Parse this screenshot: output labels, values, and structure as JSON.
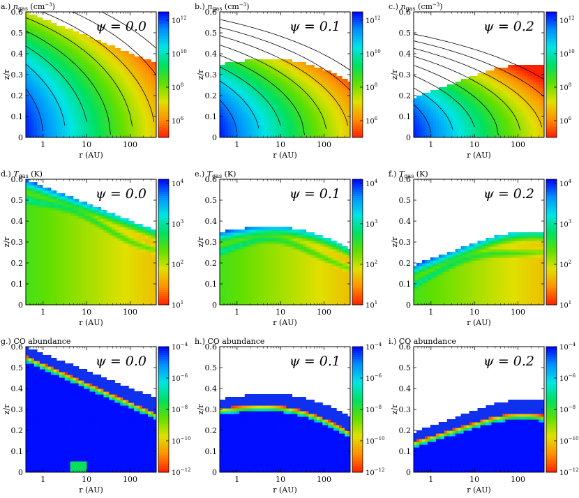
{
  "chart_data": [
    {
      "id": "a",
      "type": "heatmap",
      "title": "a.) n_gas (cm^-3)",
      "title_prefix": "a.)",
      "title_var": "n",
      "title_sub": "gas",
      "title_unit": "(cm",
      "title_exp": "−3",
      "title_close": ")",
      "psi_label": "ψ = 0.0",
      "quantity": "gas density",
      "psi": 0.0,
      "xlabel": "r (AU)",
      "ylabel": "z/r",
      "xscale": "log",
      "xlim": [
        0.4,
        400
      ],
      "ylim": [
        0,
        0.6
      ],
      "xticks": [
        "1",
        "10",
        "100"
      ],
      "yticks": [
        "0",
        "0.1",
        "0.2",
        "0.3",
        "0.4",
        "0.5",
        "0.6"
      ],
      "colorbar": {
        "scale": "log",
        "range_exp": [
          5,
          12.5
        ],
        "ticks": [
          {
            "base": "10",
            "exp": "12"
          },
          {
            "base": "10",
            "exp": "10"
          },
          {
            "base": "10",
            "exp": "8"
          },
          {
            "base": "10",
            "exp": "6"
          }
        ]
      },
      "grid": false
    },
    {
      "id": "b",
      "type": "heatmap",
      "title": "b.) n_gas (cm^-3)",
      "title_prefix": "b.)",
      "title_var": "n",
      "title_sub": "gas",
      "title_unit": "(cm",
      "title_exp": "−3",
      "title_close": ")",
      "psi_label": "ψ = 0.1",
      "quantity": "gas density",
      "psi": 0.1,
      "xlabel": "r (AU)",
      "ylabel": "z/r",
      "xscale": "log",
      "xlim": [
        0.4,
        400
      ],
      "ylim": [
        0,
        0.6
      ],
      "xticks": [
        "1",
        "10",
        "100"
      ],
      "yticks": [
        "0",
        "0.1",
        "0.2",
        "0.3",
        "0.4",
        "0.5",
        "0.6"
      ],
      "colorbar": {
        "scale": "log",
        "range_exp": [
          5,
          12.5
        ],
        "ticks": [
          {
            "base": "10",
            "exp": "12"
          },
          {
            "base": "10",
            "exp": "10"
          },
          {
            "base": "10",
            "exp": "8"
          },
          {
            "base": "10",
            "exp": "6"
          }
        ]
      },
      "grid": false
    },
    {
      "id": "c",
      "type": "heatmap",
      "title": "c.) n_gas (cm^-3)",
      "title_prefix": "c.)",
      "title_var": "n",
      "title_sub": "gas",
      "title_unit": "(cm",
      "title_exp": "−3",
      "title_close": ")",
      "psi_label": "ψ = 0.2",
      "quantity": "gas density",
      "psi": 0.2,
      "xlabel": "r (AU)",
      "ylabel": "z/r",
      "xscale": "log",
      "xlim": [
        0.4,
        400
      ],
      "ylim": [
        0,
        0.6
      ],
      "xticks": [
        "1",
        "10",
        "100"
      ],
      "yticks": [
        "0",
        "0.1",
        "0.2",
        "0.3",
        "0.4",
        "0.5",
        "0.6"
      ],
      "colorbar": {
        "scale": "log",
        "range_exp": [
          5,
          12.5
        ],
        "ticks": [
          {
            "base": "10",
            "exp": "12"
          },
          {
            "base": "10",
            "exp": "10"
          },
          {
            "base": "10",
            "exp": "8"
          },
          {
            "base": "10",
            "exp": "6"
          }
        ]
      },
      "grid": false
    },
    {
      "id": "d",
      "type": "heatmap",
      "title": "d.) T_gas (K)",
      "title_prefix": "d.)",
      "title_var": "T",
      "title_sub": "gas",
      "title_unit": "(K)",
      "title_exp": "",
      "title_close": "",
      "psi_label": "ψ = 0.0",
      "quantity": "gas temperature",
      "psi": 0.0,
      "xlabel": "r (AU)",
      "ylabel": "z/r",
      "xscale": "log",
      "xlim": [
        0.4,
        400
      ],
      "ylim": [
        0,
        0.6
      ],
      "xticks": [
        "1",
        "10",
        "100"
      ],
      "yticks": [
        "0",
        "0.1",
        "0.2",
        "0.3",
        "0.4",
        "0.5",
        "0.6"
      ],
      "colorbar": {
        "scale": "log",
        "range_exp": [
          1,
          4.1
        ],
        "ticks": [
          {
            "base": "10",
            "exp": "4"
          },
          {
            "base": "10",
            "exp": "3"
          },
          {
            "base": "10",
            "exp": "2"
          },
          {
            "base": "10",
            "exp": "1"
          }
        ]
      },
      "grid": false
    },
    {
      "id": "e",
      "type": "heatmap",
      "title": "e.) T_gas (K)",
      "title_prefix": "e.)",
      "title_var": "T",
      "title_sub": "gas",
      "title_unit": "(K)",
      "title_exp": "",
      "title_close": "",
      "psi_label": "ψ = 0.1",
      "quantity": "gas temperature",
      "psi": 0.1,
      "xlabel": "r (AU)",
      "ylabel": "z/r",
      "xscale": "log",
      "xlim": [
        0.4,
        400
      ],
      "ylim": [
        0,
        0.6
      ],
      "xticks": [
        "1",
        "10",
        "100"
      ],
      "yticks": [
        "0",
        "0.1",
        "0.2",
        "0.3",
        "0.4",
        "0.5",
        "0.6"
      ],
      "colorbar": {
        "scale": "log",
        "range_exp": [
          1,
          4.1
        ],
        "ticks": [
          {
            "base": "10",
            "exp": "4"
          },
          {
            "base": "10",
            "exp": "3"
          },
          {
            "base": "10",
            "exp": "2"
          },
          {
            "base": "10",
            "exp": "1"
          }
        ]
      },
      "grid": false
    },
    {
      "id": "f",
      "type": "heatmap",
      "title": "f.) T_gas (K)",
      "title_prefix": "f.)",
      "title_var": "T",
      "title_sub": "gas",
      "title_unit": "(K)",
      "title_exp": "",
      "title_close": "",
      "psi_label": "ψ = 0.2",
      "quantity": "gas temperature",
      "psi": 0.2,
      "xlabel": "r (AU)",
      "ylabel": "z/r",
      "xscale": "log",
      "xlim": [
        0.4,
        400
      ],
      "ylim": [
        0,
        0.6
      ],
      "xticks": [
        "1",
        "10",
        "100"
      ],
      "yticks": [
        "0",
        "0.1",
        "0.2",
        "0.3",
        "0.4",
        "0.5",
        "0.6"
      ],
      "colorbar": {
        "scale": "log",
        "range_exp": [
          1,
          4.1
        ],
        "ticks": [
          {
            "base": "10",
            "exp": "4"
          },
          {
            "base": "10",
            "exp": "3"
          },
          {
            "base": "10",
            "exp": "2"
          },
          {
            "base": "10",
            "exp": "1"
          }
        ]
      },
      "grid": false
    },
    {
      "id": "g",
      "type": "heatmap",
      "title": "g.) CO abundance",
      "title_prefix": "g.)",
      "title_var": "",
      "title_sub": "",
      "title_unit": "CO abundance",
      "title_exp": "",
      "title_close": "",
      "psi_label": "ψ = 0.0",
      "quantity": "CO abundance",
      "psi": 0.0,
      "xlabel": "r (AU)",
      "ylabel": "z/r",
      "xscale": "log",
      "xlim": [
        0.4,
        400
      ],
      "ylim": [
        0,
        0.6
      ],
      "xticks": [
        "1",
        "10",
        "100"
      ],
      "yticks": [
        "0",
        "0.1",
        "0.2",
        "0.3",
        "0.4",
        "0.5",
        "0.6"
      ],
      "colorbar": {
        "scale": "log",
        "range_exp": [
          -12,
          -4
        ],
        "ticks": [
          {
            "base": "10",
            "exp": "−4"
          },
          {
            "base": "10",
            "exp": "−6"
          },
          {
            "base": "10",
            "exp": "−8"
          },
          {
            "base": "10",
            "exp": "−10"
          },
          {
            "base": "10",
            "exp": "−12"
          }
        ]
      },
      "grid": false
    },
    {
      "id": "h",
      "type": "heatmap",
      "title": "h.) CO abundance",
      "title_prefix": "h.)",
      "title_var": "",
      "title_sub": "",
      "title_unit": "CO abundance",
      "title_exp": "",
      "title_close": "",
      "psi_label": "ψ = 0.1",
      "quantity": "CO abundance",
      "psi": 0.1,
      "xlabel": "r (AU)",
      "ylabel": "z/r",
      "xscale": "log",
      "xlim": [
        0.4,
        400
      ],
      "ylim": [
        0,
        0.6
      ],
      "xticks": [
        "1",
        "10",
        "100"
      ],
      "yticks": [
        "0",
        "0.1",
        "0.2",
        "0.3",
        "0.4",
        "0.5",
        "0.6"
      ],
      "colorbar": {
        "scale": "log",
        "range_exp": [
          -12,
          -4
        ],
        "ticks": [
          {
            "base": "10",
            "exp": "−4"
          },
          {
            "base": "10",
            "exp": "−6"
          },
          {
            "base": "10",
            "exp": "−8"
          },
          {
            "base": "10",
            "exp": "−10"
          },
          {
            "base": "10",
            "exp": "−12"
          }
        ]
      },
      "grid": false
    },
    {
      "id": "i",
      "type": "heatmap",
      "title": "i.) CO abundance",
      "title_prefix": "i.)",
      "title_var": "",
      "title_sub": "",
      "title_unit": "CO abundance",
      "title_exp": "",
      "title_close": "",
      "psi_label": "ψ = 0.2",
      "quantity": "CO abundance",
      "psi": 0.2,
      "xlabel": "r (AU)",
      "ylabel": "z/r",
      "xscale": "log",
      "xlim": [
        0.4,
        400
      ],
      "ylim": [
        0,
        0.6
      ],
      "xticks": [
        "1",
        "10",
        "100"
      ],
      "yticks": [
        "0",
        "0.1",
        "0.2",
        "0.3",
        "0.4",
        "0.5",
        "0.6"
      ],
      "colorbar": {
        "scale": "log",
        "range_exp": [
          -12,
          -4
        ],
        "ticks": [
          {
            "base": "10",
            "exp": "−4"
          },
          {
            "base": "10",
            "exp": "−6"
          },
          {
            "base": "10",
            "exp": "−8"
          },
          {
            "base": "10",
            "exp": "−10"
          },
          {
            "base": "10",
            "exp": "−12"
          }
        ]
      },
      "grid": false
    }
  ],
  "colors": {
    "colormap": [
      "#0000ff",
      "#0090ff",
      "#00e5e5",
      "#00e060",
      "#60e000",
      "#e0e000",
      "#ff9000",
      "#ff2000"
    ],
    "co_depleted": "#1030f0",
    "contour": "#000000"
  }
}
